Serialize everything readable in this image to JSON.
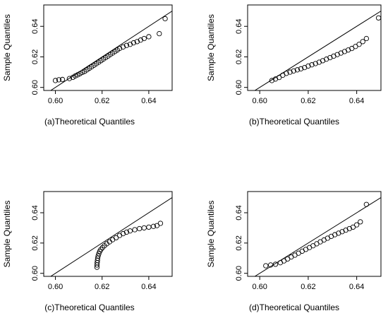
{
  "chart_data": [
    {
      "type": "scatter",
      "panel": "a",
      "xlabel": "(a)Theoretical Quantiles",
      "ylabel": "Sample Quantiles",
      "xlim": [
        0.595,
        0.65
      ],
      "ylim": [
        0.598,
        0.654
      ],
      "xticks": [
        0.6,
        0.62,
        0.64
      ],
      "xtick_labels": [
        "0.60",
        "0.62",
        "0.64"
      ],
      "yticks": [
        0.6,
        0.62,
        0.64
      ],
      "ytick_labels": [
        "0.60",
        "0.62",
        "0.64"
      ],
      "reference_line": {
        "slope": 1,
        "intercept": 0
      },
      "points": [
        [
          0.6,
          0.6045
        ],
        [
          0.6015,
          0.605
        ],
        [
          0.603,
          0.6052
        ],
        [
          0.606,
          0.6058
        ],
        [
          0.6075,
          0.6066
        ],
        [
          0.6085,
          0.6075
        ],
        [
          0.6095,
          0.6082
        ],
        [
          0.6105,
          0.609
        ],
        [
          0.6115,
          0.6098
        ],
        [
          0.6125,
          0.6105
        ],
        [
          0.6135,
          0.6115
        ],
        [
          0.6145,
          0.6125
        ],
        [
          0.6155,
          0.6135
        ],
        [
          0.6165,
          0.6145
        ],
        [
          0.6175,
          0.6155
        ],
        [
          0.6185,
          0.6165
        ],
        [
          0.6195,
          0.6175
        ],
        [
          0.6205,
          0.6185
        ],
        [
          0.6215,
          0.6195
        ],
        [
          0.6225,
          0.6205
        ],
        [
          0.6235,
          0.6215
        ],
        [
          0.6245,
          0.6225
        ],
        [
          0.6255,
          0.6235
        ],
        [
          0.6265,
          0.6245
        ],
        [
          0.6275,
          0.6255
        ],
        [
          0.629,
          0.6265
        ],
        [
          0.6305,
          0.6275
        ],
        [
          0.632,
          0.6282
        ],
        [
          0.6335,
          0.6292
        ],
        [
          0.635,
          0.63
        ],
        [
          0.6365,
          0.631
        ],
        [
          0.638,
          0.632
        ],
        [
          0.64,
          0.6332
        ],
        [
          0.6445,
          0.6352
        ],
        [
          0.647,
          0.645
        ]
      ]
    },
    {
      "type": "scatter",
      "panel": "b",
      "xlabel": "(b)Theoretical Quantiles",
      "ylabel": "Sample Quantiles",
      "xlim": [
        0.595,
        0.65
      ],
      "ylim": [
        0.598,
        0.654
      ],
      "xticks": [
        0.6,
        0.62,
        0.64
      ],
      "xtick_labels": [
        "0.60",
        "0.62",
        "0.64"
      ],
      "yticks": [
        0.6,
        0.62,
        0.64
      ],
      "ytick_labels": [
        "0.60",
        "0.62",
        "0.64"
      ],
      "reference_line": {
        "slope": 1,
        "intercept": 0
      },
      "points": [
        [
          0.605,
          0.6045
        ],
        [
          0.6065,
          0.6055
        ],
        [
          0.608,
          0.6065
        ],
        [
          0.6095,
          0.608
        ],
        [
          0.611,
          0.6092
        ],
        [
          0.6125,
          0.61
        ],
        [
          0.614,
          0.6108
        ],
        [
          0.6155,
          0.6115
        ],
        [
          0.617,
          0.6122
        ],
        [
          0.6185,
          0.613
        ],
        [
          0.62,
          0.614
        ],
        [
          0.6215,
          0.6148
        ],
        [
          0.623,
          0.6156
        ],
        [
          0.6245,
          0.6165
        ],
        [
          0.626,
          0.6175
        ],
        [
          0.6275,
          0.6185
        ],
        [
          0.629,
          0.6195
        ],
        [
          0.6305,
          0.6205
        ],
        [
          0.632,
          0.6215
        ],
        [
          0.6335,
          0.6225
        ],
        [
          0.635,
          0.6235
        ],
        [
          0.6365,
          0.6245
        ],
        [
          0.638,
          0.6255
        ],
        [
          0.6395,
          0.6268
        ],
        [
          0.641,
          0.6282
        ],
        [
          0.6425,
          0.63
        ],
        [
          0.644,
          0.632
        ],
        [
          0.649,
          0.6455
        ]
      ]
    },
    {
      "type": "scatter",
      "panel": "c",
      "xlabel": "(c)Theoretical Quantiles",
      "ylabel": "Sample Quantiles",
      "xlim": [
        0.595,
        0.65
      ],
      "ylim": [
        0.598,
        0.654
      ],
      "xticks": [
        0.6,
        0.62,
        0.64
      ],
      "xtick_labels": [
        "0.60",
        "0.62",
        "0.64"
      ],
      "yticks": [
        0.6,
        0.62,
        0.64
      ],
      "ytick_labels": [
        "0.60",
        "0.62",
        "0.64"
      ],
      "reference_line": {
        "slope": 1,
        "intercept": 0
      },
      "points": [
        [
          0.6178,
          0.604
        ],
        [
          0.6178,
          0.6055
        ],
        [
          0.6179,
          0.607
        ],
        [
          0.618,
          0.6085
        ],
        [
          0.6181,
          0.61
        ],
        [
          0.6183,
          0.6115
        ],
        [
          0.6186,
          0.613
        ],
        [
          0.619,
          0.6145
        ],
        [
          0.6195,
          0.6158
        ],
        [
          0.6202,
          0.617
        ],
        [
          0.621,
          0.6182
        ],
        [
          0.622,
          0.6195
        ],
        [
          0.6232,
          0.6208
        ],
        [
          0.6245,
          0.6222
        ],
        [
          0.626,
          0.6235
        ],
        [
          0.6275,
          0.625
        ],
        [
          0.629,
          0.6262
        ],
        [
          0.6305,
          0.6272
        ],
        [
          0.632,
          0.628
        ],
        [
          0.634,
          0.6288
        ],
        [
          0.636,
          0.6295
        ],
        [
          0.638,
          0.63
        ],
        [
          0.64,
          0.6305
        ],
        [
          0.642,
          0.631
        ],
        [
          0.6435,
          0.6315
        ],
        [
          0.645,
          0.633
        ]
      ]
    },
    {
      "type": "scatter",
      "panel": "d",
      "xlabel": "(d)Theoretical Quantiles",
      "ylabel": "Sample Quantiles",
      "xlim": [
        0.595,
        0.65
      ],
      "ylim": [
        0.598,
        0.654
      ],
      "xticks": [
        0.6,
        0.62,
        0.64
      ],
      "xtick_labels": [
        "0.60",
        "0.62",
        "0.64"
      ],
      "yticks": [
        0.6,
        0.62,
        0.64
      ],
      "ytick_labels": [
        "0.60",
        "0.62",
        "0.64"
      ],
      "reference_line": {
        "slope": 1,
        "intercept": 0
      },
      "points": [
        [
          0.6025,
          0.605
        ],
        [
          0.6045,
          0.6055
        ],
        [
          0.6065,
          0.606
        ],
        [
          0.6085,
          0.607
        ],
        [
          0.61,
          0.6082
        ],
        [
          0.6115,
          0.6095
        ],
        [
          0.613,
          0.6108
        ],
        [
          0.6145,
          0.612
        ],
        [
          0.616,
          0.6133
        ],
        [
          0.6175,
          0.6146
        ],
        [
          0.619,
          0.6158
        ],
        [
          0.6205,
          0.617
        ],
        [
          0.622,
          0.6182
        ],
        [
          0.6235,
          0.6195
        ],
        [
          0.625,
          0.6208
        ],
        [
          0.6265,
          0.622
        ],
        [
          0.628,
          0.6232
        ],
        [
          0.6295,
          0.6244
        ],
        [
          0.631,
          0.6255
        ],
        [
          0.6325,
          0.6265
        ],
        [
          0.634,
          0.6275
        ],
        [
          0.6355,
          0.6285
        ],
        [
          0.637,
          0.6295
        ],
        [
          0.6385,
          0.6305
        ],
        [
          0.64,
          0.632
        ],
        [
          0.6415,
          0.634
        ],
        [
          0.644,
          0.6455
        ]
      ]
    }
  ]
}
